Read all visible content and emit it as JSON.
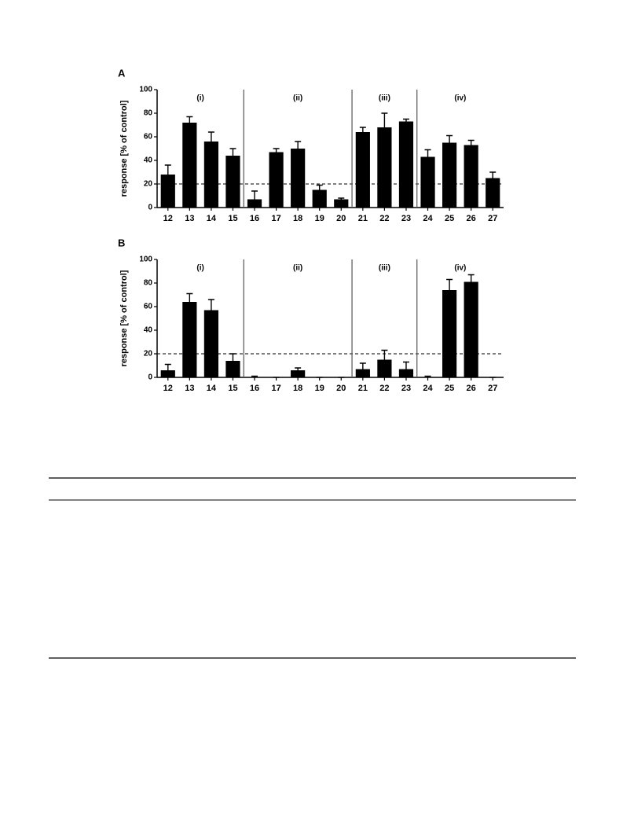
{
  "chart_data": [
    {
      "type": "bar",
      "panel": "A",
      "ylabel": "response [% of control]",
      "categories": [
        "12",
        "13",
        "14",
        "15",
        "16",
        "17",
        "18",
        "19",
        "20",
        "21",
        "22",
        "23",
        "24",
        "25",
        "26",
        "27"
      ],
      "values": [
        28,
        72,
        56,
        44,
        7,
        47,
        50,
        15,
        7,
        64,
        68,
        73,
        43,
        55,
        53,
        25
      ],
      "errors": [
        8,
        5,
        8,
        6,
        7,
        3,
        6,
        4,
        1,
        4,
        12,
        2,
        6,
        6,
        4,
        5
      ],
      "color": "#000000",
      "ylim": [
        0,
        100
      ],
      "yticks": [
        0,
        20,
        40,
        60,
        80,
        100
      ],
      "reference_line": 20,
      "groups": [
        {
          "label": "(i)",
          "categories": [
            "12",
            "13",
            "14",
            "15"
          ]
        },
        {
          "label": "(ii)",
          "categories": [
            "16",
            "17",
            "18",
            "19",
            "20"
          ]
        },
        {
          "label": "(iii)",
          "categories": [
            "21",
            "22",
            "23"
          ]
        },
        {
          "label": "(iv)",
          "categories": [
            "24",
            "25",
            "26",
            "27"
          ]
        }
      ]
    },
    {
      "type": "bar",
      "panel": "B",
      "ylabel": "response [% of control]",
      "categories": [
        "12",
        "13",
        "14",
        "15",
        "16",
        "17",
        "18",
        "19",
        "20",
        "21",
        "22",
        "23",
        "24",
        "25",
        "26",
        "27"
      ],
      "values": [
        6,
        64,
        57,
        14,
        0,
        0,
        6,
        0,
        0,
        7,
        15,
        7,
        0,
        74,
        81,
        0
      ],
      "errors": [
        5,
        7,
        9,
        6,
        1,
        0,
        2,
        0,
        0,
        5,
        8,
        6,
        1,
        9,
        6,
        0
      ],
      "color": "#000000",
      "ylim": [
        0,
        100
      ],
      "yticks": [
        0,
        20,
        40,
        60,
        80,
        100
      ],
      "reference_line": 20,
      "groups": [
        {
          "label": "(i)",
          "categories": [
            "12",
            "13",
            "14",
            "15"
          ]
        },
        {
          "label": "(ii)",
          "categories": [
            "16",
            "17",
            "18",
            "19",
            "20"
          ]
        },
        {
          "label": "(iii)",
          "categories": [
            "21",
            "22",
            "23"
          ]
        },
        {
          "label": "(iv)",
          "categories": [
            "24",
            "25",
            "26",
            "27"
          ]
        }
      ]
    }
  ]
}
